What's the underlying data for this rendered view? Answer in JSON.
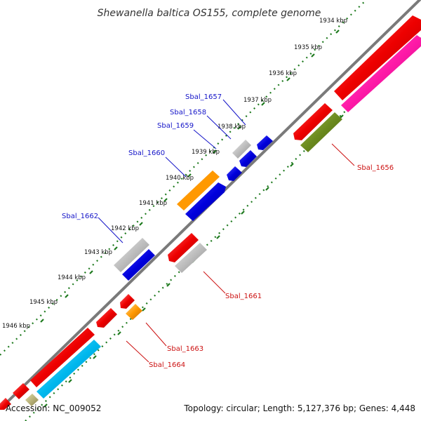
{
  "title": "Shewanella baltica OS155, complete genome",
  "footer": {
    "accession": "Accession: NC_009052",
    "summary": "Topology: circular; Length: 5,127,376 bp; Genes: 4,448"
  },
  "kbp_labels": [
    "1934 kbp",
    "1935 kbp",
    "1936 kbp",
    "1937 kbp",
    "1938 kbp",
    "1939 kbp",
    "1940 kbp",
    "1941 kbp",
    "1942 kbp",
    "1943 kbp",
    "1944 kbp",
    "1945 kbp",
    "1946 kbp"
  ],
  "gene_labels": {
    "Sbal_1656": "Sbal_1656",
    "Sbal_1657": "Sbal_1657",
    "Sbal_1658": "Sbal_1658",
    "Sbal_1659": "Sbal_1659",
    "Sbal_1660": "Sbal_1660",
    "Sbal_1661": "Sbal_1661",
    "Sbal_1662": "Sbal_1662",
    "Sbal_1663": "Sbal_1663",
    "Sbal_1664": "Sbal_1664"
  },
  "colors": {
    "backbone": "#7a7a7a",
    "ticks": "#1e7a1e",
    "red": "#ee0000",
    "blue": "#0000dd",
    "grey": "#bdbdbd",
    "magenta": "#ff1aa8",
    "orange": "#ff9900",
    "olive": "#6b8a1e",
    "cyan": "#00b8ee",
    "khaki": "#b9b37a",
    "label_blue": "#1414c8",
    "label_red": "#cc1111"
  }
}
